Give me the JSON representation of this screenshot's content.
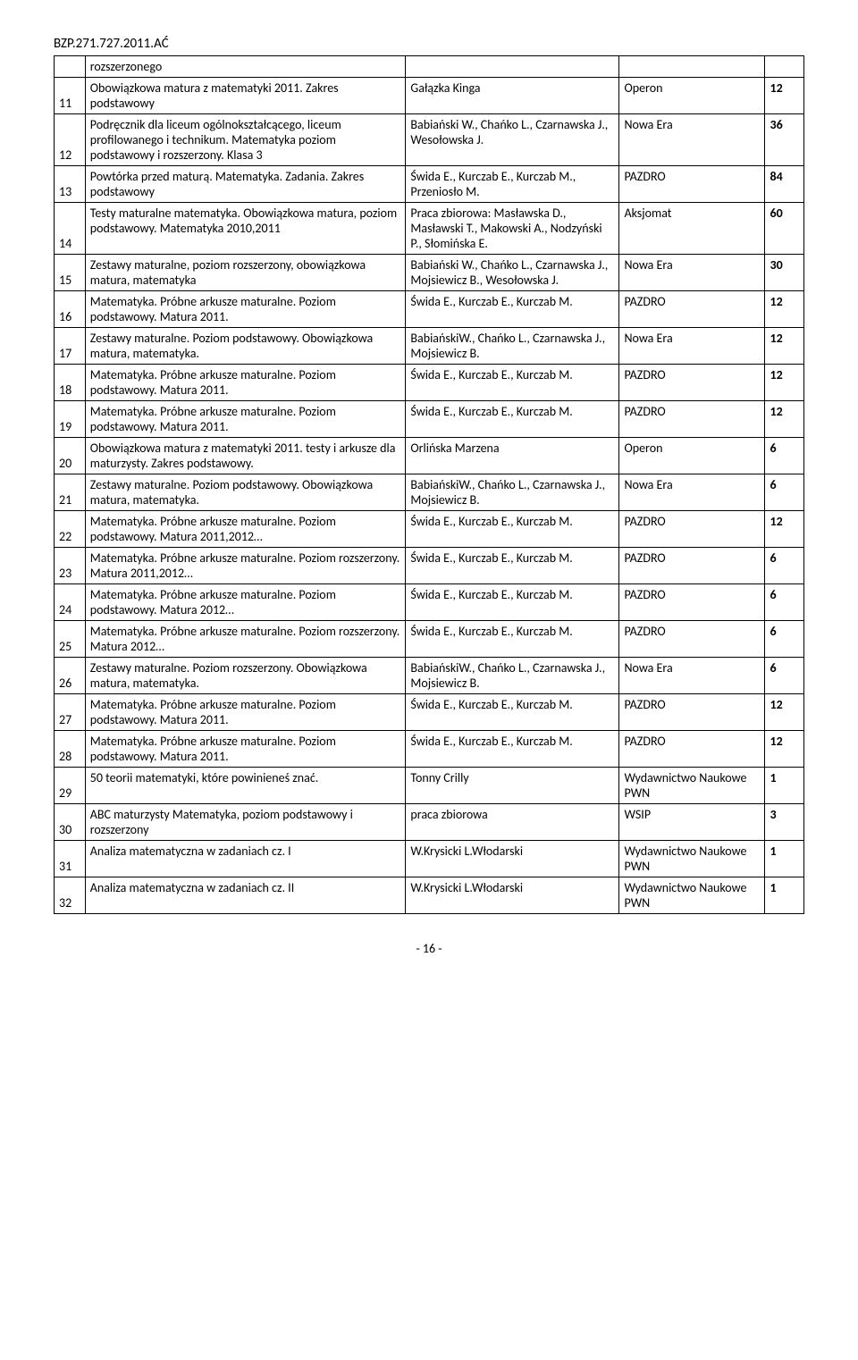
{
  "header": "BZP.271.727.2011.AĆ",
  "footer": "- 16 -",
  "top_row_text": "rozszerzonego",
  "rows": [
    {
      "num": "11",
      "title": "Obowiązkowa matura z matematyki 2011. Zakres podstawowy",
      "author": "Gałązka Kinga",
      "pub": "Operon",
      "qty": "12"
    },
    {
      "num": "12",
      "title": "Podręcznik dla liceum ogólnokształcącego, liceum profilowanego i technikum. Matematyka poziom podstawowy i rozszerzony. Klasa 3",
      "author": "Babiański W., Chańko L., Czarnawska J., Wesołowska J.",
      "pub": "Nowa Era",
      "qty": "36"
    },
    {
      "num": "13",
      "title": "Powtórka przed maturą. Matematyka. Zadania. Zakres podstawowy",
      "author": "Świda E., Kurczab E., Kurczab M., Przeniosło M.",
      "pub": "PAZDRO",
      "qty": "84"
    },
    {
      "num": "14",
      "title": "Testy maturalne matematyka. Obowiązkowa matura, poziom podstawowy. Matematyka 2010,2011",
      "author": "Praca zbiorowa: Masławska D., Masławski T., Makowski A., Nodzyński P., Słomińska E.",
      "pub": "Aksjomat",
      "qty": "60"
    },
    {
      "num": "15",
      "title": "Zestawy maturalne, poziom rozszerzony, obowiązkowa matura, matematyka",
      "author": "Babiański W., Chańko L., Czarnawska J., Mojsiewicz B., Wesołowska J.",
      "pub": "Nowa Era",
      "qty": "30"
    },
    {
      "num": "16",
      "title": "Matematyka. Próbne arkusze maturalne. Poziom podstawowy. Matura 2011.",
      "author": "Świda E., Kurczab E., Kurczab M.",
      "pub": "PAZDRO",
      "qty": "12"
    },
    {
      "num": "17",
      "title": "Zestawy maturalne. Poziom podstawowy. Obowiązkowa matura, matematyka.",
      "author": "BabiańskiW., Chańko L., Czarnawska J., Mojsiewicz B.",
      "pub": "Nowa Era",
      "qty": "12"
    },
    {
      "num": "18",
      "title": "Matematyka. Próbne arkusze maturalne. Poziom podstawowy. Matura 2011.",
      "author": "Świda E., Kurczab E., Kurczab M.",
      "pub": "PAZDRO",
      "qty": "12"
    },
    {
      "num": "19",
      "title": "Matematyka. Próbne arkusze maturalne. Poziom podstawowy. Matura 2011.",
      "author": "Świda E., Kurczab E., Kurczab M.",
      "pub": "PAZDRO",
      "qty": "12"
    },
    {
      "num": "20",
      "title": "Obowiązkowa matura z matematyki 2011. testy i arkusze dla maturzysty. Zakres podstawowy.",
      "author": "Orlińska Marzena",
      "pub": "Operon",
      "qty": "6"
    },
    {
      "num": "21",
      "title": "Zestawy maturalne. Poziom podstawowy. Obowiązkowa matura, matematyka.",
      "author": "BabiańskiW., Chańko L., Czarnawska J., Mojsiewicz B.",
      "pub": "Nowa Era",
      "qty": "6"
    },
    {
      "num": "22",
      "title": "Matematyka. Próbne arkusze maturalne. Poziom podstawowy. Matura 2011,2012…",
      "author": "Świda E., Kurczab E., Kurczab M.",
      "pub": "PAZDRO",
      "qty": "12"
    },
    {
      "num": "23",
      "title": "Matematyka. Próbne arkusze maturalne. Poziom rozszerzony. Matura 2011,2012…",
      "author": "Świda E., Kurczab E., Kurczab M.",
      "pub": "PAZDRO",
      "qty": "6"
    },
    {
      "num": "24",
      "title": "Matematyka. Próbne arkusze maturalne. Poziom podstawowy. Matura 2012…",
      "author": "Świda E., Kurczab E., Kurczab M.",
      "pub": "PAZDRO",
      "qty": "6"
    },
    {
      "num": "25",
      "title": "Matematyka. Próbne arkusze maturalne. Poziom rozszerzony. Matura 2012…",
      "author": "Świda E., Kurczab E., Kurczab M.",
      "pub": "PAZDRO",
      "qty": "6"
    },
    {
      "num": "26",
      "title": "Zestawy maturalne. Poziom rozszerzony. Obowiązkowa matura, matematyka.",
      "author": "BabiańskiW., Chańko L., Czarnawska J., Mojsiewicz B.",
      "pub": "Nowa Era",
      "qty": "6"
    },
    {
      "num": "27",
      "title": "Matematyka. Próbne arkusze maturalne. Poziom podstawowy. Matura 2011.",
      "author": "Świda E., Kurczab E., Kurczab M.",
      "pub": "PAZDRO",
      "qty": "12"
    },
    {
      "num": "28",
      "title": "Matematyka. Próbne arkusze maturalne. Poziom podstawowy. Matura 2011.",
      "author": "Świda E., Kurczab E., Kurczab M.",
      "pub": "PAZDRO",
      "qty": "12"
    },
    {
      "num": "29",
      "title": "50 teorii matematyki, które powinieneś znać.",
      "author": "Tonny Crilly",
      "pub": "Wydawnictwo Naukowe PWN",
      "qty": "1"
    },
    {
      "num": "30",
      "title": "ABC maturzysty Matematyka, poziom podstawowy i rozszerzony",
      "author": "praca zbiorowa",
      "pub": "WSIP",
      "qty": "3"
    },
    {
      "num": "31",
      "title": "Analiza matematyczna w zadaniach cz. I",
      "author": "W.Krysicki L.Włodarski",
      "pub": "Wydawnictwo Naukowe PWN",
      "qty": "1"
    },
    {
      "num": "32",
      "title": "Analiza matematyczna w zadaniach cz. II",
      "author": "W.Krysicki L.Włodarski",
      "pub": "Wydawnictwo Naukowe PWN",
      "qty": "1"
    }
  ]
}
